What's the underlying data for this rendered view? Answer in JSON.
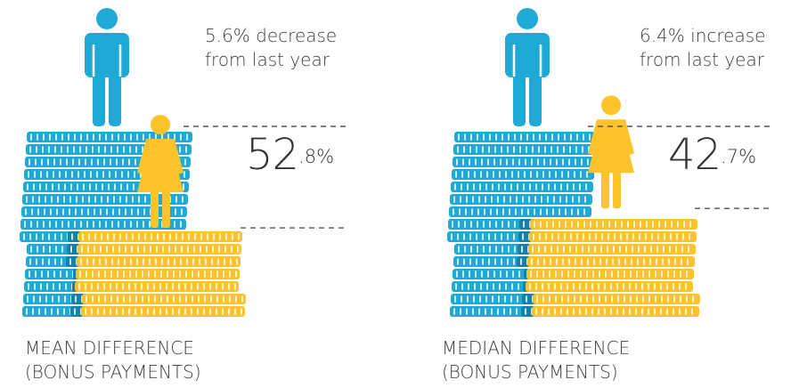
{
  "colors": {
    "men": "#1ea9d6",
    "men_shade": "#1580a8",
    "women": "#fdc32a",
    "coin_line": "#ffffff",
    "dash": "#555555"
  },
  "chart_data": [
    {
      "type": "bar",
      "title": "",
      "categories": [
        "Men",
        "Women"
      ],
      "series": [
        {
          "values": [
            100,
            47.2
          ]
        }
      ],
      "gap_percent": 52.8,
      "gap_display": {
        "whole": "52",
        "decimal": ".8%"
      },
      "change_text": [
        "5.6% decrease",
        "from last year"
      ],
      "caption": [
        "MEAN DIFFERENCE",
        "(BONUS PAYMENTS)"
      ],
      "icons": [
        "man-icon",
        "woman-icon"
      ]
    },
    {
      "type": "bar",
      "title": "",
      "categories": [
        "Men",
        "Women"
      ],
      "series": [
        {
          "values": [
            100,
            57.3
          ]
        }
      ],
      "gap_percent": 42.7,
      "gap_display": {
        "whole": "42",
        "decimal": ".7%"
      },
      "change_text": [
        "6.4% increase",
        "from last year"
      ],
      "caption": [
        "MEDIAN DIFFERENCE",
        "(BONUS PAYMENTS)"
      ],
      "icons": [
        "man-icon",
        "woman-icon"
      ]
    }
  ]
}
